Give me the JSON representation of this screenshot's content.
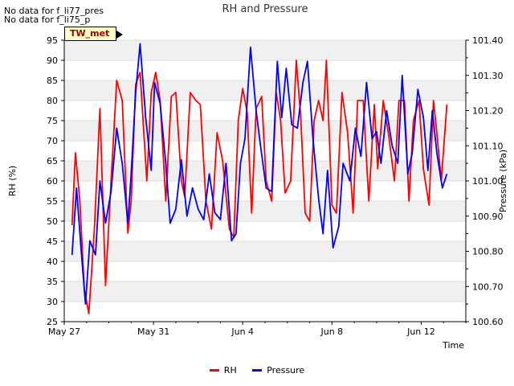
{
  "notes": [
    "No data for f_li77_pres",
    "No data for f_li75_p"
  ],
  "tag": "TW_met",
  "chart_data": {
    "type": "line",
    "title": "RH and Pressure",
    "xlabel": "Time",
    "ylabel": "RH (%)",
    "y2label": "Pressure (kPa)",
    "x_ticks": [
      "May 27",
      "May 31",
      "Jun 4",
      "Jun 8",
      "Jun 12"
    ],
    "y_ticks": [
      25,
      30,
      35,
      40,
      45,
      50,
      55,
      60,
      65,
      70,
      75,
      80,
      85,
      90,
      95
    ],
    "y2_ticks": [
      "100.60",
      "100.70",
      "100.80",
      "100.90",
      "101.00",
      "101.10",
      "101.20",
      "101.30",
      "101.40"
    ],
    "ylim": [
      25,
      95
    ],
    "y2lim": [
      100.6,
      101.4
    ],
    "xlim_days": [
      0,
      18
    ],
    "grid": "horizontal bands",
    "legend_position": "bottom-center",
    "series": [
      {
        "name": "RH",
        "color": "#ff0000",
        "axis": "left",
        "x_days": [
          0.35,
          0.5,
          0.7,
          0.9,
          1.1,
          1.35,
          1.6,
          1.85,
          2.1,
          2.35,
          2.6,
          2.85,
          3.0,
          3.2,
          3.4,
          3.7,
          3.9,
          4.1,
          4.3,
          4.55,
          4.8,
          5.0,
          5.25,
          5.4,
          5.65,
          5.9,
          6.1,
          6.35,
          6.6,
          6.85,
          7.1,
          7.4,
          7.6,
          7.8,
          8.0,
          8.2,
          8.4,
          8.6,
          8.85,
          9.05,
          9.3,
          9.5,
          9.7,
          9.9,
          10.15,
          10.4,
          10.6,
          10.8,
          11.0,
          11.2,
          11.4,
          11.6,
          11.75,
          12.0,
          12.2,
          12.45,
          12.7,
          12.95,
          13.15,
          13.4,
          13.65,
          13.9,
          14.05,
          14.3,
          14.55,
          14.8,
          15.0,
          15.25,
          15.45,
          15.65,
          15.9,
          16.1,
          16.35,
          16.55,
          16.7,
          16.9,
          17.15
        ],
        "values": [
          49,
          67,
          55,
          33,
          27,
          48,
          78,
          34,
          60,
          85,
          80,
          47,
          55,
          84,
          87,
          60,
          82,
          87,
          80,
          55,
          81,
          82,
          60,
          56,
          82,
          80,
          79,
          55,
          48,
          72,
          65,
          48,
          46,
          75,
          83,
          77,
          52,
          78,
          81,
          60,
          55,
          82,
          75,
          57,
          60,
          90,
          76,
          52,
          50,
          75,
          80,
          75,
          90,
          54,
          52,
          82,
          72,
          52,
          80,
          80,
          55,
          79,
          63,
          80,
          71,
          60,
          80,
          80,
          55,
          75,
          80,
          63,
          54,
          80,
          72,
          60,
          79
        ]
      },
      {
        "name": "Pressure",
        "color": "#0000ff",
        "axis": "right",
        "x_days": [
          0.35,
          0.55,
          0.75,
          0.95,
          1.15,
          1.4,
          1.6,
          1.85,
          2.1,
          2.35,
          2.6,
          2.85,
          3.0,
          3.2,
          3.4,
          3.65,
          3.9,
          4.05,
          4.3,
          4.55,
          4.75,
          5.0,
          5.25,
          5.5,
          5.75,
          6.0,
          6.25,
          6.5,
          6.75,
          7.0,
          7.25,
          7.5,
          7.7,
          7.9,
          8.1,
          8.35,
          8.6,
          8.8,
          9.05,
          9.3,
          9.55,
          9.75,
          9.95,
          10.2,
          10.45,
          10.7,
          10.9,
          11.15,
          11.4,
          11.6,
          11.8,
          12.05,
          12.3,
          12.5,
          12.8,
          13.05,
          13.3,
          13.55,
          13.8,
          14.0,
          14.2,
          14.45,
          14.7,
          14.95,
          15.15,
          15.4,
          15.6,
          15.85,
          16.1,
          16.3,
          16.5,
          16.7,
          16.95,
          17.15
        ],
        "values": [
          100.79,
          100.98,
          100.81,
          100.65,
          100.83,
          100.79,
          101.0,
          100.88,
          100.97,
          101.15,
          101.05,
          100.88,
          101.02,
          101.25,
          101.39,
          101.18,
          101.03,
          101.28,
          101.22,
          101.05,
          100.88,
          100.92,
          101.06,
          100.9,
          100.98,
          100.92,
          100.89,
          101.02,
          100.91,
          100.89,
          101.05,
          100.83,
          100.85,
          101.05,
          101.12,
          101.38,
          101.2,
          101.1,
          100.98,
          100.97,
          101.34,
          101.18,
          101.32,
          101.16,
          101.15,
          101.28,
          101.34,
          101.12,
          100.95,
          100.85,
          101.03,
          100.81,
          100.87,
          101.05,
          101.0,
          101.15,
          101.07,
          101.28,
          101.12,
          101.14,
          101.05,
          101.2,
          101.1,
          101.05,
          101.3,
          101.02,
          101.08,
          101.26,
          101.18,
          101.03,
          101.2,
          101.08,
          100.98,
          101.02
        ]
      }
    ]
  }
}
